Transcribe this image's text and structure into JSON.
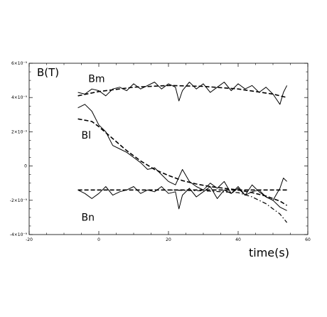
{
  "chart_data": {
    "type": "line",
    "xlabel": "time(s)",
    "ylabel": "B(T)",
    "xlim": [
      -20,
      60
    ],
    "ylim": [
      -4e-09,
      6e-09
    ],
    "x_ticks": [
      -20,
      0,
      20,
      40,
      60
    ],
    "x_tick_labels": [
      "-20",
      "0",
      "20",
      "40",
      "60"
    ],
    "y_ticks": [
      -4e-09,
      -2e-09,
      0,
      2e-09,
      4e-09,
      6e-09
    ],
    "y_tick_labels": [
      "-4×10⁻⁹",
      "-2×10⁻⁹",
      "0",
      "2×10⁻⁹",
      "4×10⁻⁹",
      "6×10⁻⁹"
    ],
    "grid": false,
    "series": [
      {
        "name": "Bm",
        "style": "solid",
        "x": [
          -6,
          -4,
          -2,
          0,
          2,
          4,
          6,
          8,
          10,
          12,
          14,
          16,
          18,
          20,
          22,
          23,
          24,
          26,
          28,
          30,
          32,
          34,
          36,
          38,
          40,
          42,
          44,
          46,
          48,
          50,
          51,
          52,
          53,
          54
        ],
        "y": [
          4.3e-09,
          4.2e-09,
          4.5e-09,
          4.4e-09,
          4.1e-09,
          4.5e-09,
          4.6e-09,
          4.4e-09,
          4.8e-09,
          4.5e-09,
          4.7e-09,
          4.9e-09,
          4.5e-09,
          4.8e-09,
          4.6e-09,
          3.8e-09,
          4.4e-09,
          4.9e-09,
          4.5e-09,
          4.8e-09,
          4.3e-09,
          4.6e-09,
          4.9e-09,
          4.4e-09,
          4.8e-09,
          4.5e-09,
          4.7e-09,
          4.3e-09,
          4.6e-09,
          4.2e-09,
          3.9e-09,
          3.6e-09,
          4.3e-09,
          4.7e-09
        ]
      },
      {
        "name": "Bm",
        "style": "dashed",
        "x": [
          -6,
          0,
          10,
          20,
          30,
          40,
          50,
          54
        ],
        "y": [
          4.1e-09,
          4.35e-09,
          4.6e-09,
          4.7e-09,
          4.65e-09,
          4.5e-09,
          4.2e-09,
          4e-09
        ]
      },
      {
        "name": "Bl",
        "style": "solid",
        "x": [
          -6,
          -4,
          -2,
          0,
          2,
          4,
          6,
          8,
          10,
          12,
          14,
          16,
          18,
          20,
          22,
          24,
          26,
          28,
          30,
          32,
          34,
          36,
          38,
          40,
          42,
          44,
          46,
          48,
          50,
          52,
          53,
          54
        ],
        "y": [
          3.4e-09,
          3.6e-09,
          3.2e-09,
          2.4e-09,
          2e-09,
          1.2e-09,
          1e-09,
          8e-10,
          5e-10,
          2e-10,
          -2e-10,
          -1e-10,
          -5e-10,
          -9e-10,
          -1.1e-09,
          -2e-10,
          -9e-10,
          -1.2e-09,
          -1.4e-09,
          -1e-09,
          -1.3e-09,
          -9e-10,
          -1.6e-09,
          -1.2e-09,
          -1.7e-09,
          -1.1e-09,
          -1.5e-09,
          -1.8e-09,
          -2e-09,
          -1.3e-09,
          -7e-10,
          -9e-10
        ]
      },
      {
        "name": "Bl",
        "style": "dashed",
        "x": [
          -6,
          -2,
          0,
          4,
          8,
          12,
          16,
          20,
          24,
          28,
          32,
          36,
          40,
          44,
          48,
          52,
          54
        ],
        "y": [
          2.75e-09,
          2.6e-09,
          2.3e-09,
          1.6e-09,
          9e-10,
          3e-10,
          -2e-10,
          -5.5e-10,
          -8.5e-10,
          -1.05e-09,
          -1.2e-09,
          -1.3e-09,
          -1.4e-09,
          -1.55e-09,
          -1.75e-09,
          -2.05e-09,
          -2.3e-09
        ]
      },
      {
        "name": "Bn",
        "style": "solid",
        "x": [
          -6,
          -4,
          -2,
          0,
          2,
          4,
          6,
          8,
          10,
          12,
          14,
          16,
          18,
          20,
          22,
          23,
          24,
          26,
          28,
          30,
          32,
          34,
          36,
          38,
          40,
          42,
          44,
          46,
          48,
          50,
          52,
          54
        ],
        "y": [
          -1.4e-09,
          -1.6e-09,
          -1.9e-09,
          -1.6e-09,
          -1.2e-09,
          -1.7e-09,
          -1.5e-09,
          -1.4e-09,
          -1.2e-09,
          -1.6e-09,
          -1.4e-09,
          -1.5e-09,
          -1.2e-09,
          -1.6e-09,
          -1.5e-09,
          -2.5e-09,
          -1.7e-09,
          -1.3e-09,
          -1.8e-09,
          -1.5e-09,
          -1.2e-09,
          -1.9e-09,
          -1.4e-09,
          -1.6e-09,
          -1.3e-09,
          -1.7e-09,
          -1.5e-09,
          -1.4e-09,
          -1.8e-09,
          -2e-09,
          -2.4e-09,
          -2.6e-09
        ]
      },
      {
        "name": "Bn",
        "style": "dashed",
        "x": [
          -6,
          54
        ],
        "y": [
          -1.4e-09,
          -1.4e-09
        ]
      },
      {
        "name": "Bn",
        "style": "dash-dot",
        "x": [
          20,
          30,
          40,
          44,
          48,
          52,
          54
        ],
        "y": [
          -1.4e-09,
          -1.45e-09,
          -1.55e-09,
          -1.8e-09,
          -2.2e-09,
          -2.8e-09,
          -3.3e-09
        ]
      }
    ],
    "labels": [
      {
        "text": "Bm",
        "x": -3,
        "y": 4.9e-09
      },
      {
        "text": "Bl",
        "x": -5,
        "y": 1.6e-09
      },
      {
        "text": "Bn",
        "x": -5,
        "y": -3.2e-09
      }
    ]
  }
}
